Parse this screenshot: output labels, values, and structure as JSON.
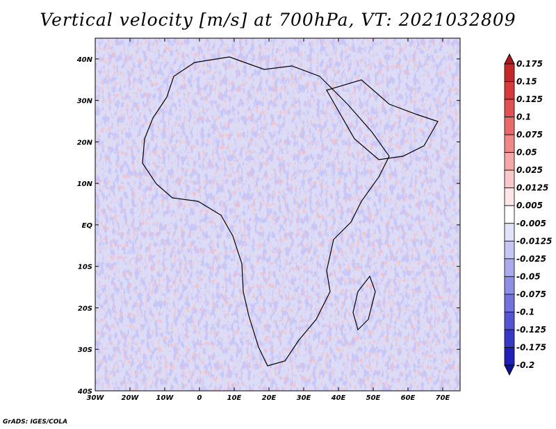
{
  "chart_data": {
    "type": "heatmap",
    "title": "Vertical velocity [m/s] at 700hPa, VT: 2021032809",
    "xlabel": "",
    "ylabel": "",
    "xlim": [
      -30,
      75
    ],
    "ylim": [
      -40,
      45
    ],
    "x_ticks": [
      {
        "value": -30,
        "label": "30W"
      },
      {
        "value": -20,
        "label": "20W"
      },
      {
        "value": -10,
        "label": "10W"
      },
      {
        "value": 0,
        "label": "0"
      },
      {
        "value": 10,
        "label": "10E"
      },
      {
        "value": 20,
        "label": "20E"
      },
      {
        "value": 30,
        "label": "30E"
      },
      {
        "value": 40,
        "label": "40E"
      },
      {
        "value": 50,
        "label": "50E"
      },
      {
        "value": 60,
        "label": "60E"
      },
      {
        "value": 70,
        "label": "70E"
      }
    ],
    "y_ticks": [
      {
        "value": 40,
        "label": "40N"
      },
      {
        "value": 30,
        "label": "30N"
      },
      {
        "value": 20,
        "label": "20N"
      },
      {
        "value": 10,
        "label": "10N"
      },
      {
        "value": 0,
        "label": "EQ"
      },
      {
        "value": -10,
        "label": "10S"
      },
      {
        "value": -20,
        "label": "20S"
      },
      {
        "value": -30,
        "label": "30S"
      },
      {
        "value": -40,
        "label": "40S"
      }
    ],
    "colorbar": {
      "levels": [
        "0.175",
        "0.15",
        "0.125",
        "0.1",
        "0.075",
        "0.05",
        "0.025",
        "0.0125",
        "0.005",
        "-0.005",
        "-0.0125",
        "-0.025",
        "-0.05",
        "-0.075",
        "-0.1",
        "-0.125",
        "-0.175",
        "-0.2"
      ],
      "colors": [
        "#b01820",
        "#c62828",
        "#d63a3a",
        "#e05252",
        "#e86a6a",
        "#f08888",
        "#f5a8a8",
        "#f9c8c8",
        "#fde6e6",
        "#ffffff",
        "#e2e2f8",
        "#c6c6f2",
        "#aaaaec",
        "#8e8ee4",
        "#7272dc",
        "#5454d2",
        "#3838c6",
        "#2020b8",
        "#1010a0"
      ]
    }
  },
  "footer": "GrADS: IGES/COLA"
}
